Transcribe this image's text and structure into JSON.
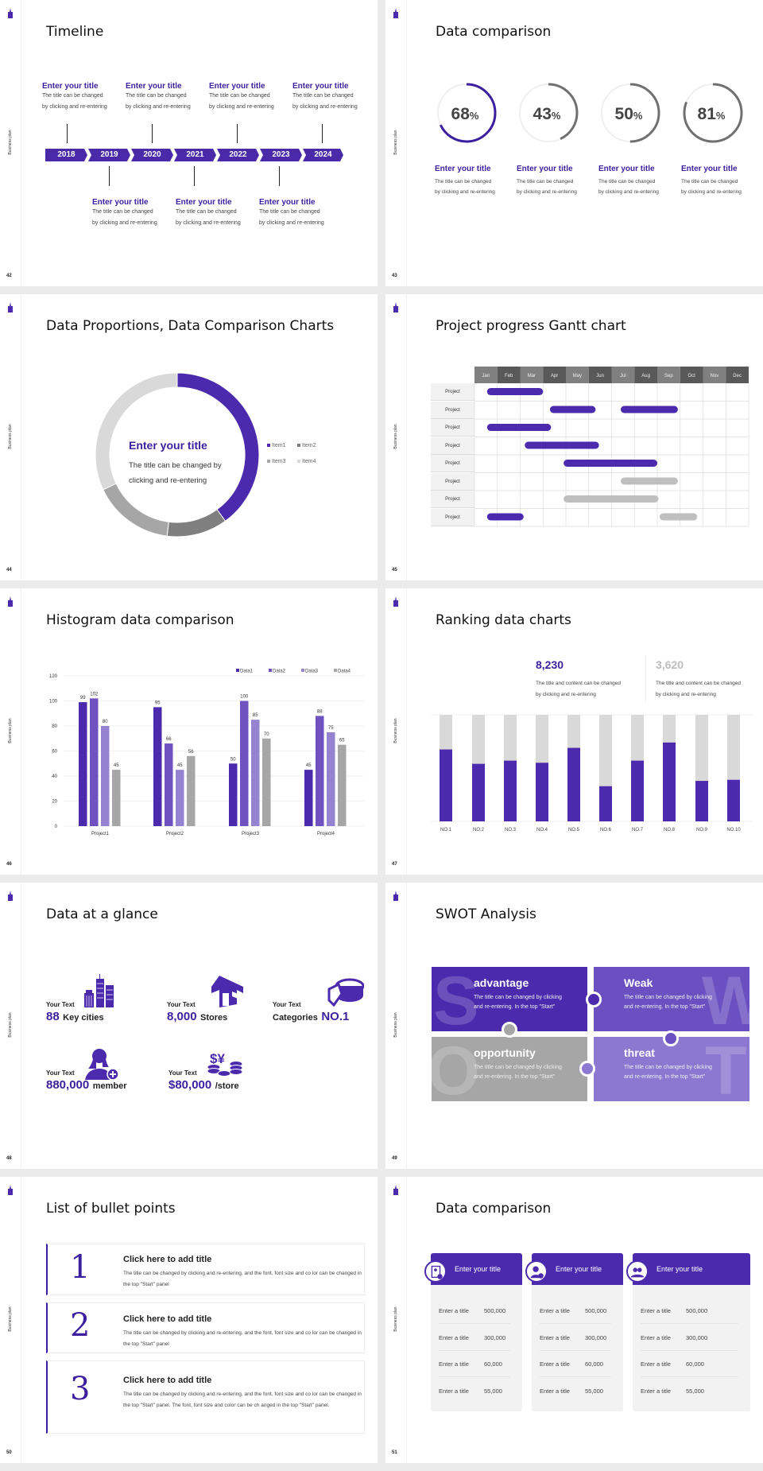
{
  "common": {
    "sidebar_label": "Business plan",
    "accent": "#4b2aad"
  },
  "s42": {
    "title": "Timeline",
    "page": "42",
    "years": [
      "2018",
      "2019",
      "2020",
      "2021",
      "2022",
      "2023",
      "2024"
    ],
    "events": [
      {
        "title": "Enter your title",
        "d1": "The title can be changed",
        "d2": "by clicking and re-entering"
      },
      {
        "title": "Enter your title",
        "d1": "The title can be changed",
        "d2": "by clicking and re-entering"
      },
      {
        "title": "Enter your title",
        "d1": "The title can be changed",
        "d2": "by clicking and re-entering"
      },
      {
        "title": "Enter your title",
        "d1": "The title can be changed",
        "d2": "by clicking and re-entering"
      },
      {
        "title": "Enter your title",
        "d1": "The title can be changed",
        "d2": "by clicking and re-entering"
      },
      {
        "title": "Enter your title",
        "d1": "The title can be changed",
        "d2": "by clicking and re-entering"
      },
      {
        "title": "Enter your title",
        "d1": "The title can be changed",
        "d2": "by clicking and re-entering"
      }
    ]
  },
  "s43": {
    "title": "Data comparison",
    "page": "43",
    "rings": [
      {
        "value": 68,
        "num": "68",
        "unit": "%",
        "color": "#3b1f9e",
        "title": "Enter your title",
        "d1": "The title can be changed",
        "d2": "by clicking and re-entering"
      },
      {
        "value": 43,
        "num": "43",
        "unit": "%",
        "color": "#707070",
        "title": "Enter your title",
        "d1": "The title can be changed",
        "d2": "by clicking and re-entering"
      },
      {
        "value": 50,
        "num": "50",
        "unit": "%",
        "color": "#707070",
        "title": "Enter your title",
        "d1": "The title can be changed",
        "d2": "by clicking and re-entering"
      },
      {
        "value": 81,
        "num": "81",
        "unit": "%",
        "color": "#707070",
        "title": "Enter your title",
        "d1": "The title can be changed",
        "d2": "by clicking and re-entering"
      }
    ]
  },
  "s44": {
    "title": "Data Proportions, Data Comparison Charts",
    "page": "44",
    "center_title": "Enter your title",
    "center_d1": "The title can be changed by",
    "center_d2": "clicking and re-entering"
  },
  "s45": {
    "title": "Project progress Gantt chart",
    "page": "45"
  },
  "s46": {
    "title": "Histogram data comparison",
    "page": "46"
  },
  "s47": {
    "title": "Ranking data charts",
    "page": "47",
    "stat1": {
      "value": "8,230",
      "d1": "The title and content can be changed",
      "d2": "by clicking and re-entering"
    },
    "stat2": {
      "value": "3,620",
      "d1": "The title and content can be changed",
      "d2": "by clicking and re-entering"
    }
  },
  "s48": {
    "title": "Data at a glance",
    "page": "48",
    "items": [
      {
        "label": "Your Text",
        "num": "88",
        "unit": "Key cities",
        "icon": "city-buildings-icon"
      },
      {
        "label": "Your Text",
        "num": "8,000",
        "unit": "Stores",
        "icon": "store-icon"
      },
      {
        "label": "Your Text",
        "pre": "Categories",
        "num": "NO.1",
        "icon": "pie-chart-3d-icon"
      },
      {
        "label": "Your Text",
        "num": "880,000",
        "unit": "member",
        "icon": "user-add-icon"
      },
      {
        "label": "Your Text",
        "num": "$80,000",
        "unit": "/store",
        "icon": "coins-icon"
      }
    ]
  },
  "s49": {
    "title": "SWOT Analysis",
    "page": "49",
    "tiles": [
      {
        "letter": "S",
        "title": "advantage",
        "d1": "The title can be changed by clicking",
        "d2": "and re-entering. In the top \"Start\"",
        "color": "#4b2aad"
      },
      {
        "letter": "W",
        "title": "Weak",
        "d1": "The title can be changed by clicking",
        "d2": "and re-entering. In the top \"Start\"",
        "color": "#6a50c0"
      },
      {
        "letter": "O",
        "title": "opportunity",
        "d1": "The title can be changed by clicking",
        "d2": "and re-entering. In the top \"Start\"",
        "color": "#a6a6a6"
      },
      {
        "letter": "T",
        "title": "threat",
        "d1": "The title can be changed by clicking",
        "d2": "and re-entering. In the top \"Start\"",
        "color": "#8c78d0"
      }
    ]
  },
  "s50": {
    "title": "List of bullet points",
    "page": "50",
    "items": [
      {
        "num": "1",
        "title": "Click here to add title",
        "desc": "The title can be changed by clicking and re-entering, and the font, font size and co lor can be changed in the top \"Start\" panel"
      },
      {
        "num": "2",
        "title": "Click here to add title",
        "desc": "The title can be changed by clicking and re-entering, and the font, font size and co lor can be changed in the top \"Start\" panel"
      },
      {
        "num": "3",
        "title": "Click here to add title",
        "desc": "The title can be changed by clicking and re-entering, and the font, font size and co lor can be changed in the top \"Start\" panel. The font, font size and color can be ch anged in the top \"Start\" panel."
      }
    ]
  },
  "s51": {
    "title": "Data comparison",
    "page": "51",
    "cards": [
      {
        "title": "Enter your title",
        "icon": "document-user-icon",
        "rows": [
          {
            "k": "Enter a title",
            "v": "500,000"
          },
          {
            "k": "Enter a title",
            "v": "300,000"
          },
          {
            "k": "Enter a title",
            "v": "60,000"
          },
          {
            "k": "Enter a title",
            "v": "55,000"
          }
        ]
      },
      {
        "title": "Enter your title",
        "icon": "user-add-icon",
        "rows": [
          {
            "k": "Enter a title",
            "v": "500,000"
          },
          {
            "k": "Enter a title",
            "v": "300,000"
          },
          {
            "k": "Enter a title",
            "v": "60,000"
          },
          {
            "k": "Enter a title",
            "v": "55,000"
          }
        ]
      },
      {
        "title": "Enter your title",
        "icon": "group-icon",
        "rows": [
          {
            "k": "Enter a title",
            "v": "500,000"
          },
          {
            "k": "Enter a title",
            "v": "300,000"
          },
          {
            "k": "Enter a title",
            "v": "60,000"
          },
          {
            "k": "Enter a title",
            "v": "55,000"
          }
        ]
      }
    ]
  },
  "chart_data": [
    {
      "id": "donut",
      "type": "pie",
      "categories": [
        "Item1",
        "Item2",
        "Item3",
        "Item4"
      ],
      "values": [
        40,
        12,
        16,
        32
      ],
      "colors": [
        "#4b2aad",
        "#7f7f7f",
        "#a6a6a6",
        "#d9d9d9"
      ],
      "legend": "right"
    },
    {
      "id": "gantt",
      "type": "bar",
      "title": "Project progress Gantt chart",
      "categories": [
        "Jan",
        "Feb",
        "Mar",
        "Apr",
        "May",
        "Jun",
        "Jul",
        "Aug",
        "Sep",
        "Oct",
        "Nov",
        "Dec"
      ],
      "tasks": [
        {
          "label": "Project",
          "bars": [
            {
              "start": 0.55,
              "end": 3.0,
              "color": "#4b2aad"
            }
          ]
        },
        {
          "label": "Project",
          "bars": [
            {
              "start": 3.3,
              "end": 5.3,
              "color": "#4b2aad"
            },
            {
              "start": 6.4,
              "end": 8.9,
              "color": "#4b2aad"
            }
          ]
        },
        {
          "label": "Project",
          "bars": [
            {
              "start": 0.55,
              "end": 3.35,
              "color": "#4b2aad"
            }
          ]
        },
        {
          "label": "Project",
          "bars": [
            {
              "start": 2.2,
              "end": 5.45,
              "color": "#4b2aad"
            }
          ]
        },
        {
          "label": "Project",
          "bars": [
            {
              "start": 3.9,
              "end": 8.0,
              "color": "#4b2aad"
            }
          ]
        },
        {
          "label": "Project",
          "bars": [
            {
              "start": 6.4,
              "end": 8.9,
              "color": "#bfbfbf"
            }
          ]
        },
        {
          "label": "Project",
          "bars": [
            {
              "start": 3.9,
              "end": 8.05,
              "color": "#bfbfbf"
            }
          ]
        },
        {
          "label": "Project",
          "bars": [
            {
              "start": 0.55,
              "end": 2.15,
              "color": "#4b2aad"
            },
            {
              "start": 8.1,
              "end": 9.75,
              "color": "#bfbfbf"
            }
          ]
        }
      ]
    },
    {
      "id": "histogram",
      "type": "bar",
      "categories": [
        "Project1",
        "Project2",
        "Project3",
        "Project4"
      ],
      "series": [
        {
          "name": "Data1",
          "values": [
            99,
            95,
            50,
            45
          ],
          "color": "#4b2aad"
        },
        {
          "name": "Data2",
          "values": [
            102,
            66,
            100,
            88
          ],
          "color": "#6f52bf"
        },
        {
          "name": "Data3",
          "values": [
            80,
            45,
            85,
            75
          ],
          "color": "#9583d1"
        },
        {
          "name": "Data4",
          "values": [
            45,
            56,
            70,
            65
          ],
          "color": "#a6a6a6"
        }
      ],
      "yticks": [
        0,
        20,
        40,
        60,
        80,
        100,
        120
      ],
      "ylim": [
        0,
        120
      ],
      "legend": "top-right",
      "grid": true
    },
    {
      "id": "ranking",
      "type": "bar",
      "categories": [
        "NO.1",
        "NO.2",
        "NO.3",
        "NO.4",
        "NO.5",
        "NO.6",
        "NO.7",
        "NO.8",
        "NO.9",
        "NO.10"
      ],
      "values": [
        67.5,
        54,
        57,
        55,
        69,
        33,
        57,
        74,
        38,
        39
      ],
      "ylim": [
        0,
        100
      ],
      "color": "#4b2aad",
      "background_color": "#d9d9d9"
    }
  ]
}
